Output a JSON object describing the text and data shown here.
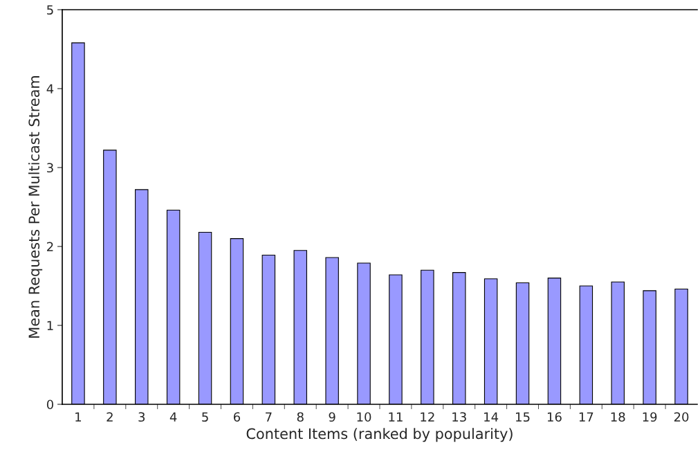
{
  "chart_data": {
    "type": "bar",
    "xlabel": "Content Items (ranked by popularity)",
    "ylabel": "Mean Requests Per Multicast Stream",
    "categories": [
      "1",
      "2",
      "3",
      "4",
      "5",
      "6",
      "7",
      "8",
      "9",
      "10",
      "11",
      "12",
      "13",
      "14",
      "15",
      "16",
      "17",
      "18",
      "19",
      "20"
    ],
    "values": [
      4.58,
      3.22,
      2.72,
      2.46,
      2.18,
      2.1,
      1.89,
      1.95,
      1.86,
      1.79,
      1.64,
      1.7,
      1.67,
      1.59,
      1.54,
      1.6,
      1.5,
      1.55,
      1.44,
      1.46
    ],
    "color": "#9999ff",
    "ylim": [
      0,
      5
    ],
    "yticks": [
      0,
      1,
      2,
      3,
      4,
      5
    ],
    "grid": false,
    "legend": false
  }
}
